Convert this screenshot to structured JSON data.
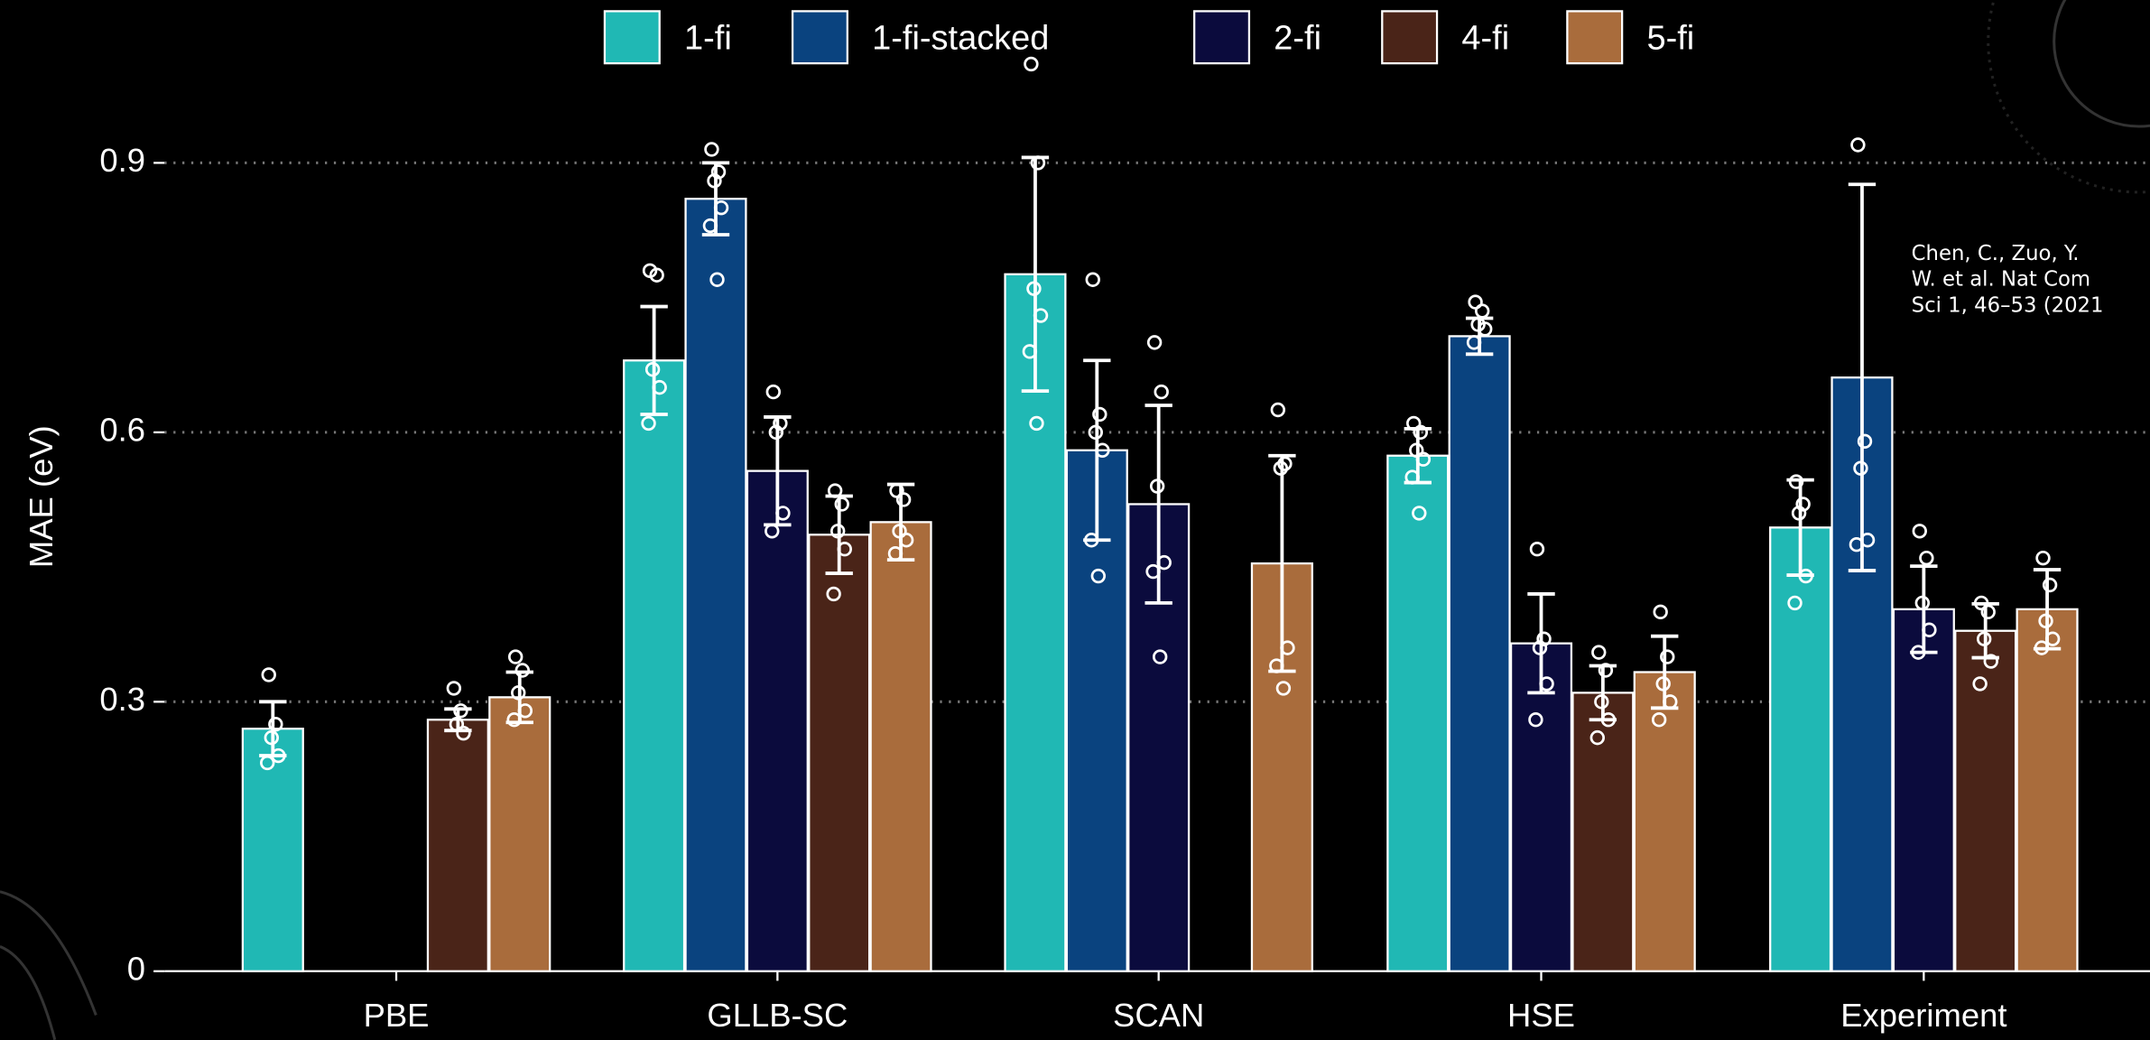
{
  "chart_data": {
    "type": "bar",
    "y_label": "MAE (eV)",
    "categories": [
      "PBE",
      "GLLB-SC",
      "SCAN",
      "HSE",
      "Experiment"
    ],
    "ylim": [
      0,
      1.02
    ],
    "yticks": [
      0,
      0.3,
      0.6,
      0.9
    ],
    "grid": true,
    "legend": "top",
    "annotation_lines": [
      "Chen, C., Zuo, Y.",
      "W. et al.  Nat Com",
      "Sci 1, 46–53 (2021"
    ],
    "series": [
      {
        "name": "1-fi",
        "color": "#20b8b4",
        "values": [
          0.27,
          0.68,
          0.776,
          0.574,
          0.494
        ],
        "errors": [
          0.03,
          0.06,
          0.13,
          0.03,
          0.053
        ],
        "points": [
          [
            0.33,
            0.275,
            0.26,
            0.24,
            0.232
          ],
          [
            0.78,
            0.775,
            0.67,
            0.65,
            0.61
          ],
          [
            1.01,
            0.9,
            0.76,
            0.73,
            0.69,
            0.61
          ],
          [
            0.61,
            0.6,
            0.58,
            0.57,
            0.55,
            0.51
          ],
          [
            0.545,
            0.52,
            0.51,
            0.44,
            0.41
          ]
        ]
      },
      {
        "name": "1-fi-stacked",
        "color": "#0a437f",
        "values": [
          null,
          0.86,
          0.58,
          0.707,
          0.661
        ],
        "errors": [
          null,
          0.04,
          0.1,
          0.02,
          0.215
        ],
        "points": [
          null,
          [
            0.915,
            0.89,
            0.88,
            0.85,
            0.83,
            0.77
          ],
          [
            0.77,
            0.62,
            0.6,
            0.58,
            0.48,
            0.44
          ],
          [
            0.745,
            0.735,
            0.72,
            0.715,
            0.7
          ],
          [
            0.92,
            0.59,
            0.56,
            0.48,
            0.475
          ]
        ]
      },
      {
        "name": "2-fi",
        "color": "#0b0b3d",
        "values": [
          null,
          0.557,
          0.52,
          0.365,
          0.403
        ],
        "errors": [
          null,
          0.06,
          0.11,
          0.055,
          0.048
        ],
        "points": [
          null,
          [
            0.645,
            0.61,
            0.6,
            0.51,
            0.49
          ],
          [
            0.7,
            0.645,
            0.54,
            0.455,
            0.445,
            0.35
          ],
          [
            0.47,
            0.37,
            0.36,
            0.32,
            0.28
          ],
          [
            0.49,
            0.46,
            0.41,
            0.38,
            0.355
          ]
        ]
      },
      {
        "name": "4-fi",
        "color": "#4a2418",
        "values": [
          0.28,
          0.486,
          null,
          0.31,
          0.379
        ],
        "errors": [
          0.012,
          0.043,
          null,
          0.03,
          0.03
        ],
        "points": [
          [
            0.315,
            0.29,
            0.275,
            0.265
          ],
          [
            0.535,
            0.52,
            0.49,
            0.47,
            0.42
          ],
          null,
          [
            0.355,
            0.335,
            0.3,
            0.28,
            0.26
          ],
          [
            0.41,
            0.4,
            0.37,
            0.345,
            0.32
          ]
        ]
      },
      {
        "name": "5-fi",
        "color": "#a96c3c",
        "values": [
          0.305,
          0.5,
          0.454,
          0.333,
          0.403
        ],
        "errors": [
          0.028,
          0.042,
          0.12,
          0.04,
          0.044
        ],
        "points": [
          [
            0.35,
            0.335,
            0.31,
            0.29,
            0.28
          ],
          [
            0.535,
            0.525,
            0.49,
            0.48,
            0.465
          ],
          [
            0.625,
            0.565,
            0.56,
            0.36,
            0.34,
            0.315
          ],
          [
            0.4,
            0.35,
            0.32,
            0.3,
            0.28
          ],
          [
            0.46,
            0.43,
            0.39,
            0.37,
            0.36
          ]
        ]
      }
    ]
  }
}
